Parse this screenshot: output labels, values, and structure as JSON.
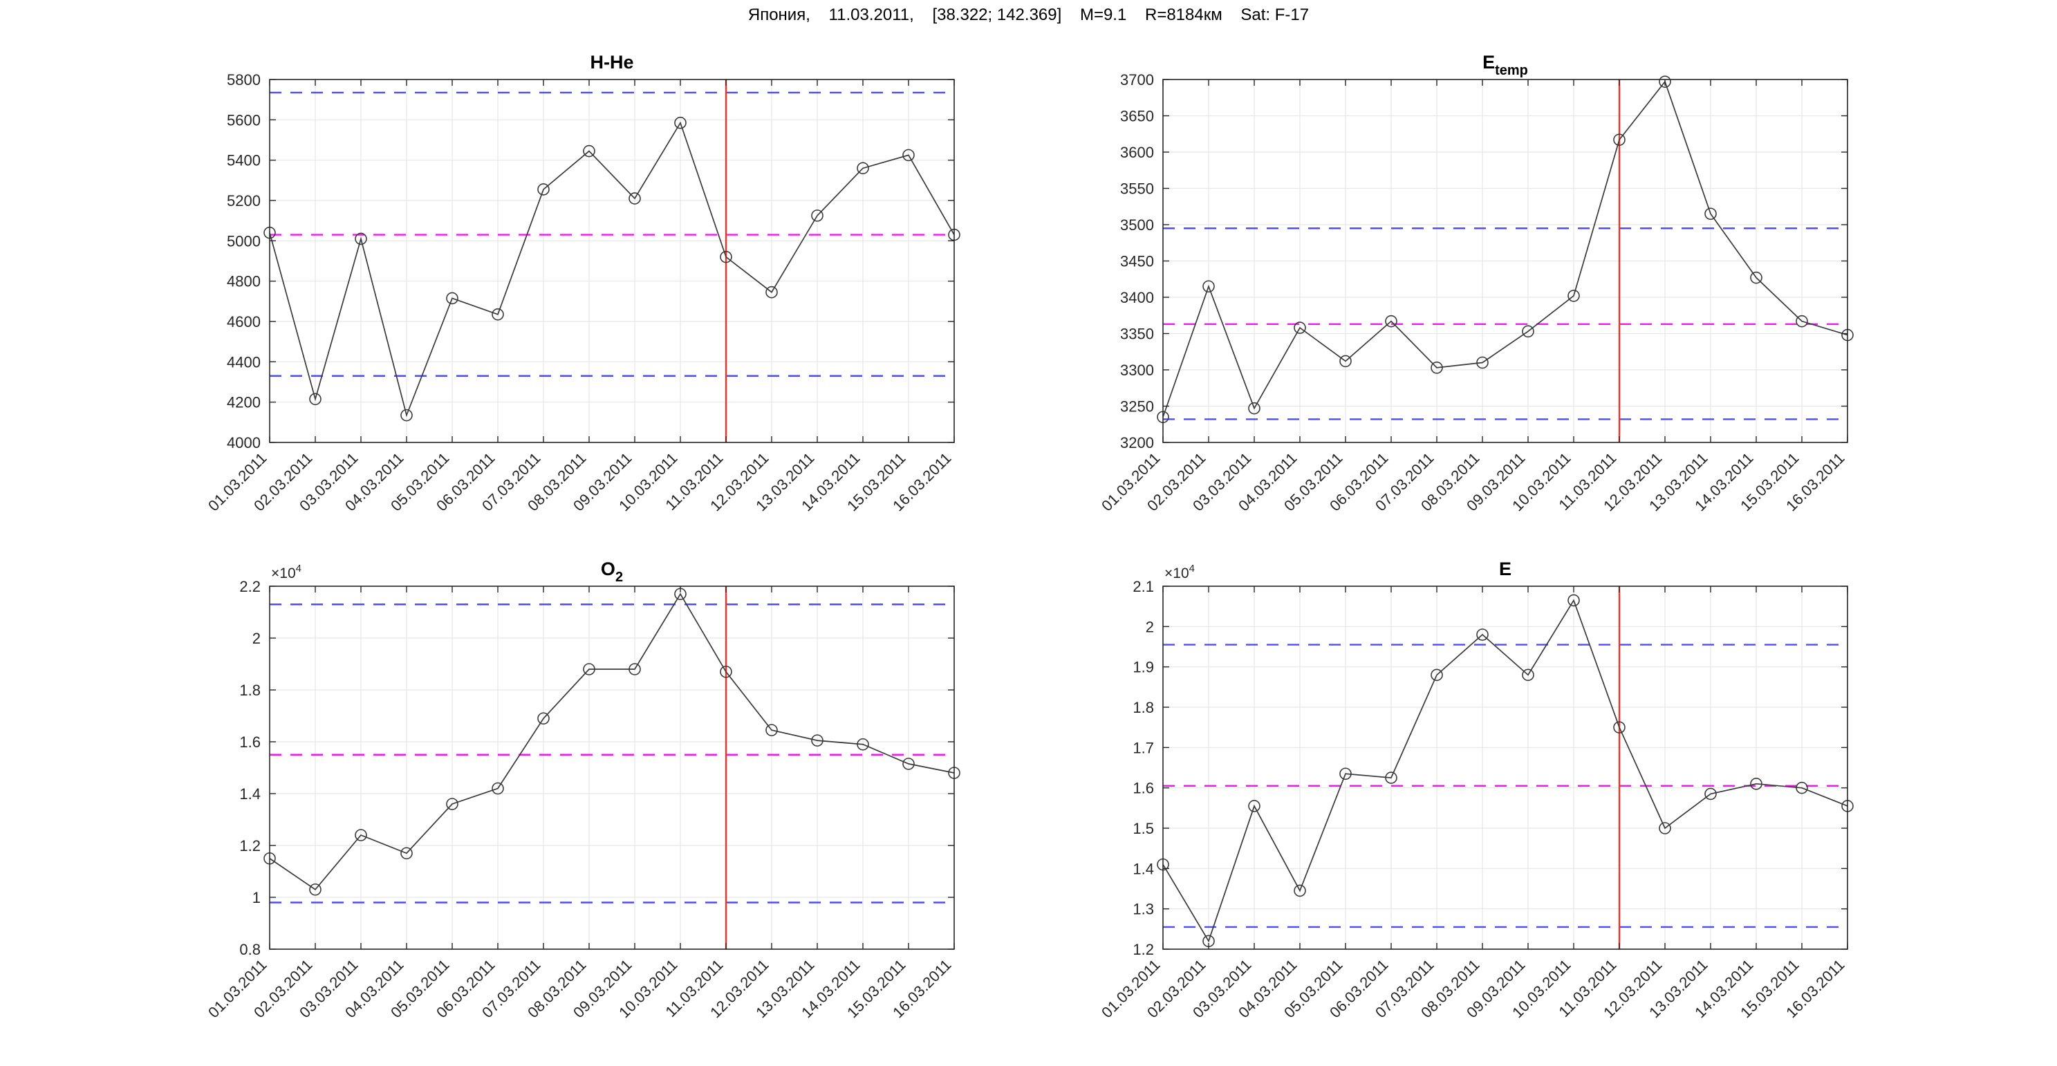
{
  "figure_title": "Япония,    11.03.2011,    [38.322; 142.369]    M=9.1    R=8184км    Sat: F-17",
  "event": {
    "date": "11.03.2011",
    "index": 10
  },
  "colors": {
    "series": "#3a3a3a",
    "bound": "#4d4df7",
    "mean": "#f318f3",
    "event": "#f03228",
    "grid": "#e7e7e7",
    "axis": "#262626",
    "text": "#262626",
    "title": "#000000"
  },
  "dates": [
    "01.03.2011",
    "02.03.2011",
    "03.03.2011",
    "04.03.2011",
    "05.03.2011",
    "06.03.2011",
    "07.03.2011",
    "08.03.2011",
    "09.03.2011",
    "10.03.2011",
    "11.03.2011",
    "12.03.2011",
    "13.03.2011",
    "14.03.2011",
    "15.03.2011",
    "16.03.2011"
  ],
  "chart_data": [
    {
      "id": "h_he",
      "type": "line",
      "title": {
        "main": "H-He",
        "sub": ""
      },
      "categories": [
        "01.03.2011",
        "02.03.2011",
        "03.03.2011",
        "04.03.2011",
        "05.03.2011",
        "06.03.2011",
        "07.03.2011",
        "08.03.2011",
        "09.03.2011",
        "10.03.2011",
        "11.03.2011",
        "12.03.2011",
        "13.03.2011",
        "14.03.2011",
        "15.03.2011",
        "16.03.2011"
      ],
      "values": [
        5040,
        4215,
        5010,
        4135,
        4715,
        4635,
        5255,
        5445,
        5210,
        5585,
        4920,
        4745,
        5125,
        5360,
        5425,
        5030
      ],
      "ylim": [
        4000,
        5800
      ],
      "yticks": [
        4000,
        4200,
        4400,
        4600,
        4800,
        5000,
        5200,
        5400,
        5600,
        5800
      ],
      "ytick_labels": [
        "4000",
        "4200",
        "4400",
        "4600",
        "4800",
        "5000",
        "5200",
        "5400",
        "5600",
        "5800"
      ],
      "bounds": {
        "upper": 5735,
        "lower": 4330,
        "mean": 5030
      },
      "event_line": "11.03.2011",
      "exponent": null,
      "xlabel": "",
      "ylabel": "",
      "grid": true,
      "legend": null
    },
    {
      "id": "e_temp",
      "type": "line",
      "title": {
        "main": "E",
        "sub": "temp"
      },
      "categories": [
        "01.03.2011",
        "02.03.2011",
        "03.03.2011",
        "04.03.2011",
        "05.03.2011",
        "06.03.2011",
        "07.03.2011",
        "08.03.2011",
        "09.03.2011",
        "10.03.2011",
        "11.03.2011",
        "12.03.2011",
        "13.03.2011",
        "14.03.2011",
        "15.03.2011",
        "16.03.2011"
      ],
      "values": [
        3235,
        3415,
        3247,
        3358,
        3312,
        3367,
        3303,
        3310,
        3353,
        3402,
        3617,
        3697,
        3515,
        3427,
        3367,
        3348
      ],
      "ylim": [
        3200,
        3700
      ],
      "yticks": [
        3200,
        3250,
        3300,
        3350,
        3400,
        3450,
        3500,
        3550,
        3600,
        3650,
        3700
      ],
      "ytick_labels": [
        "3200",
        "3250",
        "3300",
        "3350",
        "3400",
        "3450",
        "3500",
        "3550",
        "3600",
        "3650",
        "3700"
      ],
      "bounds": {
        "upper": 3495,
        "lower": 3232,
        "mean": 3363
      },
      "event_line": "11.03.2011",
      "exponent": null,
      "xlabel": "",
      "ylabel": "",
      "grid": true,
      "legend": null
    },
    {
      "id": "o2",
      "type": "line",
      "title": {
        "main": "O",
        "sub": "2"
      },
      "categories": [
        "01.03.2011",
        "02.03.2011",
        "03.03.2011",
        "04.03.2011",
        "05.03.2011",
        "06.03.2011",
        "07.03.2011",
        "08.03.2011",
        "09.03.2011",
        "10.03.2011",
        "11.03.2011",
        "12.03.2011",
        "13.03.2011",
        "14.03.2011",
        "15.03.2011",
        "16.03.2011"
      ],
      "values": [
        1.15,
        1.03,
        1.24,
        1.17,
        1.36,
        1.42,
        1.69,
        1.88,
        1.88,
        2.17,
        1.87,
        1.645,
        1.605,
        1.59,
        1.515,
        1.48
      ],
      "values_scale": 10000,
      "ylim": [
        0.8,
        2.2
      ],
      "yticks": [
        0.8,
        1.0,
        1.2,
        1.4,
        1.6,
        1.8,
        2.0,
        2.2
      ],
      "ytick_labels": [
        "0.8",
        "1",
        "1.2",
        "1.4",
        "1.6",
        "1.8",
        "2",
        "2.2"
      ],
      "bounds": {
        "upper": 2.13,
        "lower": 0.98,
        "mean": 1.55
      },
      "event_line": "11.03.2011",
      "exponent": {
        "base": "×10",
        "exp": "4"
      },
      "xlabel": "",
      "ylabel": "",
      "grid": true,
      "legend": null
    },
    {
      "id": "e",
      "type": "line",
      "title": {
        "main": "E",
        "sub": ""
      },
      "categories": [
        "01.03.2011",
        "02.03.2011",
        "03.03.2011",
        "04.03.2011",
        "05.03.2011",
        "06.03.2011",
        "07.03.2011",
        "08.03.2011",
        "09.03.2011",
        "10.03.2011",
        "11.03.2011",
        "12.03.2011",
        "13.03.2011",
        "14.03.2011",
        "15.03.2011",
        "16.03.2011"
      ],
      "values": [
        1.41,
        1.22,
        1.555,
        1.345,
        1.635,
        1.625,
        1.88,
        1.98,
        1.88,
        2.065,
        1.75,
        1.5,
        1.585,
        1.61,
        1.6,
        1.555
      ],
      "values_scale": 10000,
      "ylim": [
        1.2,
        2.1
      ],
      "yticks": [
        1.2,
        1.3,
        1.4,
        1.5,
        1.6,
        1.7,
        1.8,
        1.9,
        2.0,
        2.1
      ],
      "ytick_labels": [
        "1.2",
        "1.3",
        "1.4",
        "1.5",
        "1.6",
        "1.7",
        "1.8",
        "1.9",
        "2",
        "2.1"
      ],
      "bounds": {
        "upper": 1.955,
        "lower": 1.255,
        "mean": 1.605
      },
      "event_line": "11.03.2011",
      "exponent": {
        "base": "×10",
        "exp": "4"
      },
      "xlabel": "",
      "ylabel": "",
      "grid": true,
      "legend": null
    }
  ]
}
